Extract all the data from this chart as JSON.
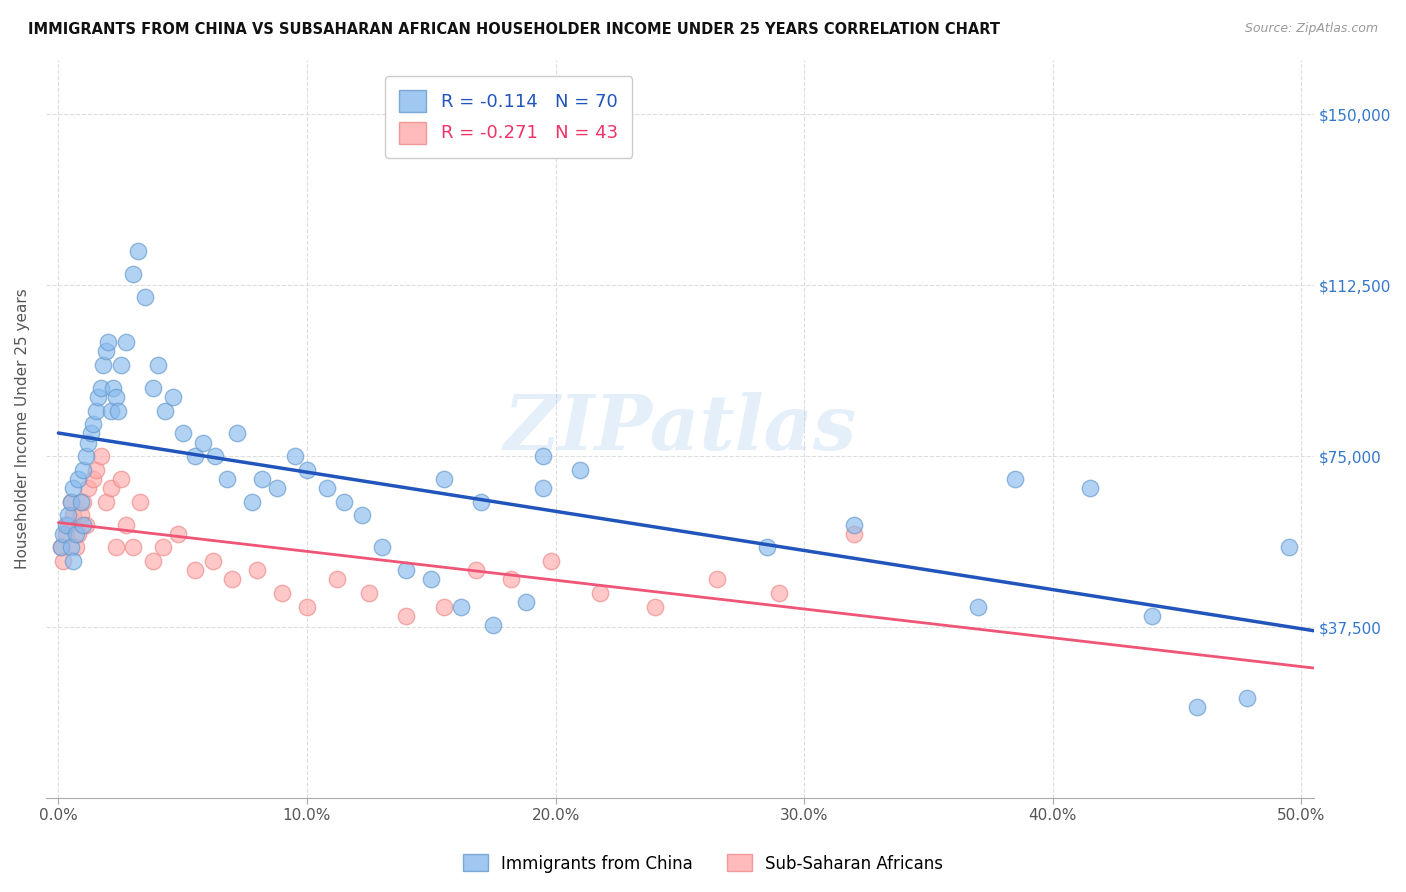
{
  "title": "IMMIGRANTS FROM CHINA VS SUBSAHARAN AFRICAN HOUSEHOLDER INCOME UNDER 25 YEARS CORRELATION CHART",
  "source": "Source: ZipAtlas.com",
  "xlabel_ticks": [
    "0.0%",
    "10.0%",
    "20.0%",
    "30.0%",
    "40.0%",
    "50.0%"
  ],
  "xlabel_vals": [
    0.0,
    0.1,
    0.2,
    0.3,
    0.4,
    0.5
  ],
  "ylabel_ticks": [
    "$37,500",
    "$75,000",
    "$112,500",
    "$150,000"
  ],
  "ylabel_vals": [
    37500,
    75000,
    112500,
    150000
  ],
  "xlim": [
    -0.005,
    0.505
  ],
  "ylim": [
    0,
    162000
  ],
  "china_R": -0.114,
  "china_N": 70,
  "africa_R": -0.271,
  "africa_N": 43,
  "china_color": "#88BBEE",
  "africa_color": "#FFAAAA",
  "trend_china_color": "#2255BB",
  "trend_africa_color": "#EE5577",
  "watermark": "ZIPatlas",
  "ylabel": "Householder Income Under 25 years",
  "china_scatter_x": [
    0.001,
    0.002,
    0.003,
    0.004,
    0.005,
    0.005,
    0.006,
    0.006,
    0.007,
    0.008,
    0.009,
    0.01,
    0.01,
    0.011,
    0.012,
    0.013,
    0.014,
    0.015,
    0.016,
    0.017,
    0.018,
    0.019,
    0.02,
    0.021,
    0.022,
    0.023,
    0.024,
    0.025,
    0.027,
    0.03,
    0.032,
    0.035,
    0.038,
    0.04,
    0.043,
    0.046,
    0.05,
    0.055,
    0.058,
    0.063,
    0.068,
    0.072,
    0.078,
    0.082,
    0.088,
    0.095,
    0.1,
    0.108,
    0.115,
    0.122,
    0.13,
    0.14,
    0.15,
    0.162,
    0.175,
    0.188,
    0.155,
    0.17,
    0.195,
    0.21,
    0.195,
    0.285,
    0.32,
    0.37,
    0.385,
    0.415,
    0.44,
    0.458,
    0.478,
    0.495
  ],
  "china_scatter_y": [
    55000,
    58000,
    60000,
    62000,
    65000,
    55000,
    52000,
    68000,
    58000,
    70000,
    65000,
    72000,
    60000,
    75000,
    78000,
    80000,
    82000,
    85000,
    88000,
    90000,
    95000,
    98000,
    100000,
    85000,
    90000,
    88000,
    85000,
    95000,
    100000,
    115000,
    120000,
    110000,
    90000,
    95000,
    85000,
    88000,
    80000,
    75000,
    78000,
    75000,
    70000,
    80000,
    65000,
    70000,
    68000,
    75000,
    72000,
    68000,
    65000,
    62000,
    55000,
    50000,
    48000,
    42000,
    38000,
    43000,
    70000,
    65000,
    68000,
    72000,
    75000,
    55000,
    60000,
    42000,
    70000,
    68000,
    40000,
    20000,
    22000,
    55000
  ],
  "africa_scatter_x": [
    0.001,
    0.002,
    0.003,
    0.004,
    0.005,
    0.006,
    0.007,
    0.008,
    0.009,
    0.01,
    0.011,
    0.012,
    0.014,
    0.015,
    0.017,
    0.019,
    0.021,
    0.023,
    0.025,
    0.027,
    0.03,
    0.033,
    0.038,
    0.042,
    0.048,
    0.055,
    0.062,
    0.07,
    0.08,
    0.09,
    0.1,
    0.112,
    0.125,
    0.14,
    0.155,
    0.168,
    0.182,
    0.198,
    0.218,
    0.24,
    0.265,
    0.29,
    0.32
  ],
  "africa_scatter_y": [
    55000,
    52000,
    58000,
    60000,
    65000,
    62000,
    55000,
    58000,
    62000,
    65000,
    60000,
    68000,
    70000,
    72000,
    75000,
    65000,
    68000,
    55000,
    70000,
    60000,
    55000,
    65000,
    52000,
    55000,
    58000,
    50000,
    52000,
    48000,
    50000,
    45000,
    42000,
    48000,
    45000,
    40000,
    42000,
    50000,
    48000,
    52000,
    45000,
    42000,
    48000,
    45000,
    58000
  ],
  "background_color": "#FFFFFF",
  "grid_color": "#DDDDDD"
}
